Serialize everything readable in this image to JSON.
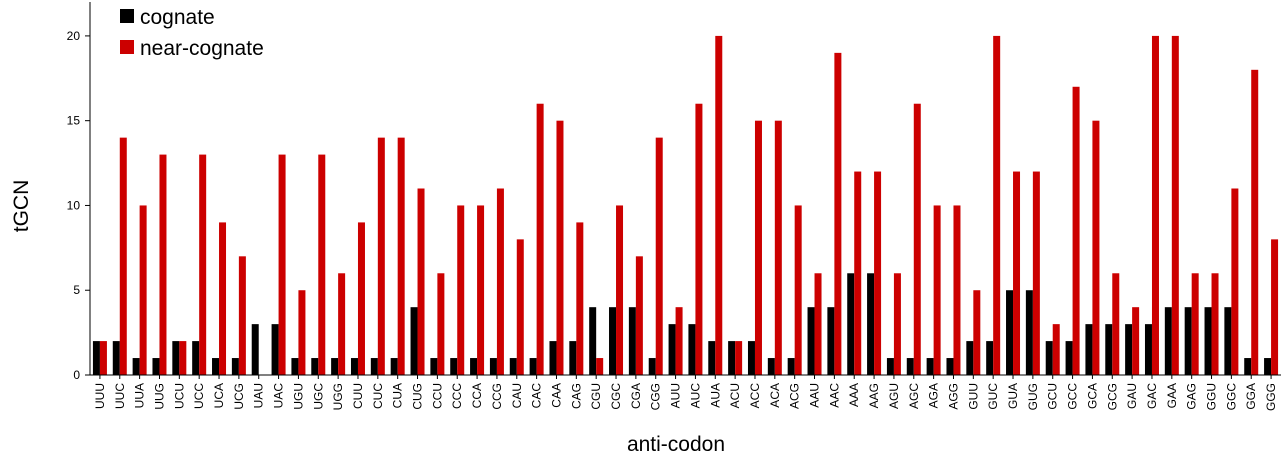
{
  "chart_data": {
    "type": "bar",
    "title": "",
    "xlabel": "anti-codon",
    "ylabel": "tGCN",
    "ylim": [
      0,
      22
    ],
    "yticks": [
      0,
      5,
      10,
      15,
      20
    ],
    "grid": false,
    "legend_position": "top-left",
    "categories": [
      "UUU",
      "UUC",
      "UUA",
      "UUG",
      "UCU",
      "UCC",
      "UCA",
      "UCG",
      "UAU",
      "UAC",
      "UGU",
      "UGC",
      "UGG",
      "CUU",
      "CUC",
      "CUA",
      "CUG",
      "CCU",
      "CCC",
      "CCA",
      "CCG",
      "CAU",
      "CAC",
      "CAA",
      "CAG",
      "CGU",
      "CGC",
      "CGA",
      "CGG",
      "AUU",
      "AUC",
      "AUA",
      "ACU",
      "ACC",
      "ACA",
      "ACG",
      "AAU",
      "AAC",
      "AAA",
      "AAG",
      "AGU",
      "AGC",
      "AGA",
      "AGG",
      "GUU",
      "GUC",
      "GUA",
      "GUG",
      "GCU",
      "GCC",
      "GCA",
      "GCG",
      "GAU",
      "GAC",
      "GAA",
      "GAG",
      "GGU",
      "GGC",
      "GGA",
      "GGG"
    ],
    "series": [
      {
        "name": "cognate",
        "color": "#000000",
        "values": [
          2,
          2,
          1,
          1,
          2,
          2,
          1,
          1,
          3,
          3,
          1,
          1,
          1,
          1,
          1,
          1,
          4,
          1,
          1,
          1,
          1,
          1,
          1,
          2,
          2,
          4,
          4,
          4,
          1,
          3,
          3,
          2,
          2,
          2,
          1,
          1,
          4,
          4,
          6,
          6,
          1,
          1,
          1,
          1,
          2,
          2,
          5,
          5,
          2,
          2,
          3,
          3,
          3,
          3,
          4,
          4,
          4,
          4,
          1,
          1
        ]
      },
      {
        "name": "near-cognate",
        "color": "#cc0000",
        "values": [
          2,
          14,
          10,
          13,
          2,
          13,
          9,
          7,
          0,
          13,
          5,
          13,
          6,
          9,
          14,
          14,
          11,
          6,
          10,
          10,
          11,
          8,
          16,
          15,
          9,
          1,
          10,
          7,
          14,
          4,
          16,
          20,
          2,
          15,
          15,
          10,
          6,
          19,
          12,
          12,
          6,
          16,
          10,
          10,
          5,
          20,
          12,
          12,
          3,
          17,
          15,
          6,
          4,
          20,
          20,
          6,
          6,
          11,
          18,
          8
        ]
      }
    ]
  }
}
